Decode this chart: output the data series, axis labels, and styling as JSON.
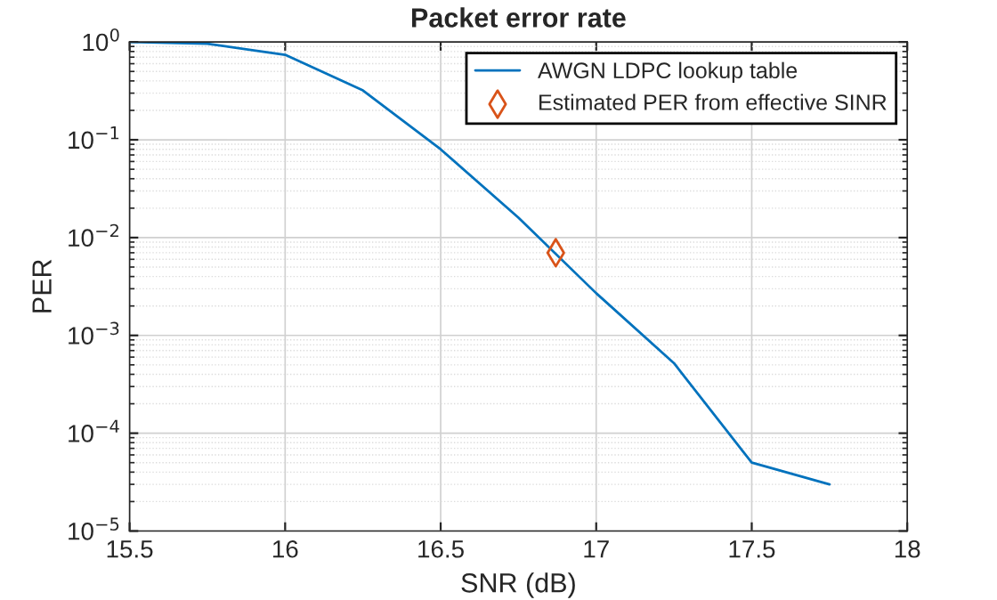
{
  "chart_data": {
    "type": "line",
    "title": "Packet error rate",
    "xlabel": "SNR (dB)",
    "ylabel": "PER",
    "log": "y",
    "grid": true,
    "legend": "top right",
    "xlim": [
      15.5,
      18
    ],
    "xticks": [
      15.5,
      16,
      16.5,
      17,
      17.5,
      18
    ],
    "ylim": [
      1e-05,
      1
    ],
    "yticks": [
      {
        "value": 1e-05,
        "label": "10$^{−5}$"
      },
      {
        "value": 0.0001,
        "label": "10$^{−4}$"
      },
      {
        "value": 0.001,
        "label": "10$^{−3}$"
      },
      {
        "value": 0.01,
        "label": "10$^{−2}$"
      },
      {
        "value": 0.1,
        "label": "10$^{−1}$"
      },
      {
        "value": 1,
        "label": "10$^{0}$"
      }
    ],
    "series": [
      {
        "name": "AWGN LDPC lookup table",
        "color": "#0072bd",
        "marker": "none",
        "x": [
          15.5,
          15.75,
          16,
          16.25,
          16.5,
          16.75,
          17,
          17.25,
          17.5,
          17.75
        ],
        "values": [
          1.0,
          0.96,
          0.74,
          0.32,
          0.08,
          0.016,
          0.0027,
          0.00052,
          5e-05,
          3e-05
        ]
      },
      {
        "name": "Estimated PER from effective SINR",
        "type": "scatter",
        "color": "#d95319",
        "marker": "diamond",
        "x": [
          16.87
        ],
        "values": [
          0.007
        ]
      }
    ]
  }
}
